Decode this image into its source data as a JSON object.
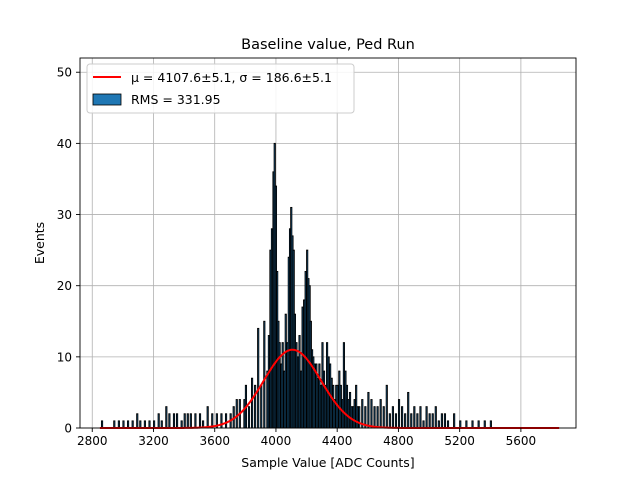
{
  "chart_data": {
    "type": "bar",
    "title": "Baseline value, Ped Run",
    "xlabel": "Sample Value [ADC Counts]",
    "ylabel": "Events",
    "xlim": [
      2720,
      5960
    ],
    "ylim": [
      0,
      52
    ],
    "xticks": [
      2800,
      3200,
      3600,
      4000,
      4400,
      4800,
      5200,
      5600
    ],
    "yticks": [
      0,
      10,
      20,
      30,
      40,
      50
    ],
    "grid": true,
    "legend_position": "top-left",
    "histogram": {
      "bin_width": 8,
      "color": "#1f77b4",
      "edgecolor": "#000000",
      "bins": [
        [
          2860,
          1
        ],
        [
          2940,
          1
        ],
        [
          2970,
          1
        ],
        [
          3000,
          1
        ],
        [
          3030,
          1
        ],
        [
          3060,
          1
        ],
        [
          3090,
          2
        ],
        [
          3110,
          1
        ],
        [
          3140,
          1
        ],
        [
          3170,
          1
        ],
        [
          3200,
          1
        ],
        [
          3230,
          2
        ],
        [
          3250,
          1
        ],
        [
          3280,
          3
        ],
        [
          3300,
          2
        ],
        [
          3330,
          2
        ],
        [
          3350,
          2
        ],
        [
          3380,
          1
        ],
        [
          3400,
          2
        ],
        [
          3420,
          2
        ],
        [
          3440,
          2
        ],
        [
          3470,
          2
        ],
        [
          3500,
          2
        ],
        [
          3520,
          1
        ],
        [
          3550,
          3
        ],
        [
          3580,
          2
        ],
        [
          3610,
          2
        ],
        [
          3640,
          2
        ],
        [
          3670,
          2
        ],
        [
          3700,
          2
        ],
        [
          3720,
          3
        ],
        [
          3740,
          4
        ],
        [
          3760,
          4
        ],
        [
          3790,
          4
        ],
        [
          3800,
          6
        ],
        [
          3820,
          3
        ],
        [
          3840,
          7
        ],
        [
          3860,
          6
        ],
        [
          3880,
          14
        ],
        [
          3900,
          6
        ],
        [
          3920,
          15
        ],
        [
          3940,
          8
        ],
        [
          3950,
          13
        ],
        [
          3960,
          25
        ],
        [
          3970,
          28
        ],
        [
          3980,
          36
        ],
        [
          3988,
          40
        ],
        [
          3996,
          34
        ],
        [
          4004,
          22
        ],
        [
          4012,
          15
        ],
        [
          4020,
          12
        ],
        [
          4030,
          9
        ],
        [
          4040,
          12
        ],
        [
          4050,
          8
        ],
        [
          4060,
          16
        ],
        [
          4070,
          12
        ],
        [
          4080,
          24
        ],
        [
          4088,
          28
        ],
        [
          4096,
          31
        ],
        [
          4104,
          27
        ],
        [
          4112,
          25
        ],
        [
          4120,
          16
        ],
        [
          4130,
          12
        ],
        [
          4140,
          10
        ],
        [
          4150,
          13
        ],
        [
          4160,
          8
        ],
        [
          4170,
          17
        ],
        [
          4180,
          18
        ],
        [
          4190,
          22
        ],
        [
          4200,
          25
        ],
        [
          4208,
          21
        ],
        [
          4216,
          20
        ],
        [
          4224,
          15
        ],
        [
          4232,
          11
        ],
        [
          4240,
          10
        ],
        [
          4250,
          9
        ],
        [
          4260,
          9
        ],
        [
          4270,
          7
        ],
        [
          4280,
          9
        ],
        [
          4290,
          6
        ],
        [
          4300,
          12
        ],
        [
          4310,
          8
        ],
        [
          4320,
          6
        ],
        [
          4330,
          12
        ],
        [
          4340,
          10
        ],
        [
          4350,
          9
        ],
        [
          4360,
          7
        ],
        [
          4370,
          6
        ],
        [
          4380,
          4
        ],
        [
          4390,
          6
        ],
        [
          4400,
          6
        ],
        [
          4410,
          8
        ],
        [
          4420,
          6
        ],
        [
          4430,
          4
        ],
        [
          4440,
          12
        ],
        [
          4450,
          8
        ],
        [
          4460,
          6
        ],
        [
          4470,
          4
        ],
        [
          4480,
          5
        ],
        [
          4490,
          3
        ],
        [
          4500,
          3
        ],
        [
          4510,
          4
        ],
        [
          4520,
          6
        ],
        [
          4530,
          3
        ],
        [
          4540,
          3
        ],
        [
          4560,
          4
        ],
        [
          4580,
          3
        ],
        [
          4600,
          5
        ],
        [
          4620,
          4
        ],
        [
          4640,
          3
        ],
        [
          4660,
          3
        ],
        [
          4680,
          4
        ],
        [
          4700,
          3
        ],
        [
          4720,
          6
        ],
        [
          4740,
          2
        ],
        [
          4760,
          3
        ],
        [
          4780,
          2
        ],
        [
          4800,
          4
        ],
        [
          4820,
          3
        ],
        [
          4840,
          2
        ],
        [
          4860,
          5
        ],
        [
          4880,
          2
        ],
        [
          4900,
          3
        ],
        [
          4920,
          2
        ],
        [
          4940,
          3
        ],
        [
          4960,
          1
        ],
        [
          4980,
          3
        ],
        [
          5000,
          2
        ],
        [
          5020,
          2
        ],
        [
          5040,
          3
        ],
        [
          5060,
          1
        ],
        [
          5080,
          2
        ],
        [
          5100,
          2
        ],
        [
          5120,
          1
        ],
        [
          5160,
          2
        ],
        [
          5200,
          1
        ],
        [
          5240,
          1
        ],
        [
          5280,
          1
        ],
        [
          5320,
          1
        ],
        [
          5360,
          1
        ],
        [
          5400,
          1
        ]
      ]
    },
    "fit": {
      "mu": 4107.6,
      "sigma": 186.6,
      "amplitude": 11,
      "x_range": [
        2850,
        5850
      ],
      "color": "#ff0000"
    },
    "legend": [
      {
        "label": "μ = 4107.6±5.1, σ = 186.6±5.1",
        "kind": "line",
        "color": "#ff0000"
      },
      {
        "label": "RMS = 331.95",
        "kind": "patch",
        "color": "#1f77b4"
      }
    ]
  }
}
